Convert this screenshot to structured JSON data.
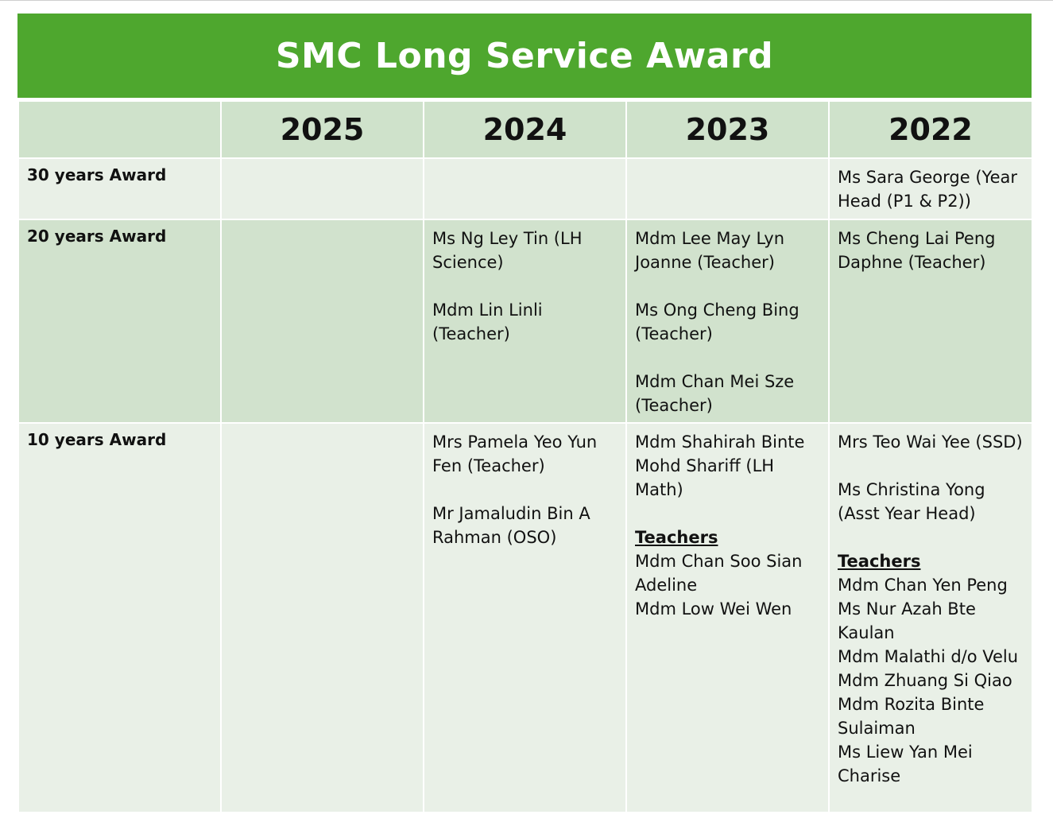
{
  "title": "SMC Long Service Award",
  "years": [
    "2025",
    "2024",
    "2023",
    "2022"
  ],
  "rows": [
    {
      "label": "30 years Award",
      "cells": [
        [],
        [],
        [],
        [
          "Ms Sara George (Year Head (P1 & P2))"
        ]
      ]
    },
    {
      "label": "20 years Award",
      "cells": [
        [],
        [
          "Ms Ng Ley Tin (LH Science)",
          "",
          "Mdm Lin Linli (Teacher)"
        ],
        [
          "Mdm Lee May Lyn Joanne (Teacher)",
          "",
          "Ms Ong Cheng Bing (Teacher)",
          "",
          "Mdm Chan Mei Sze (Teacher)"
        ],
        [
          "Ms Cheng Lai Peng Daphne (Teacher)"
        ]
      ]
    },
    {
      "label": "10 years Award",
      "cells": [
        [],
        [
          "Mrs Pamela Yeo Yun Fen (Teacher)",
          "",
          "Mr Jamaludin Bin A Rahman (OSO)"
        ],
        [
          "Mdm Shahirah Binte Mohd Shariff (LH Math)",
          "",
          "#Teachers",
          "Mdm Chan Soo Sian Adeline",
          "Mdm Low Wei Wen"
        ],
        [
          "Mrs Teo Wai Yee (SSD)",
          "",
          "Ms Christina Yong (Asst Year Head)",
          "",
          "#Teachers",
          "Mdm Chan Yen Peng",
          "Ms Nur Azah Bte Kaulan",
          "Mdm Malathi d/o Velu",
          "Mdm Zhuang Si Qiao",
          "Mdm Rozita Binte Sulaiman",
          "Ms Liew Yan Mei Charise"
        ]
      ]
    }
  ]
}
